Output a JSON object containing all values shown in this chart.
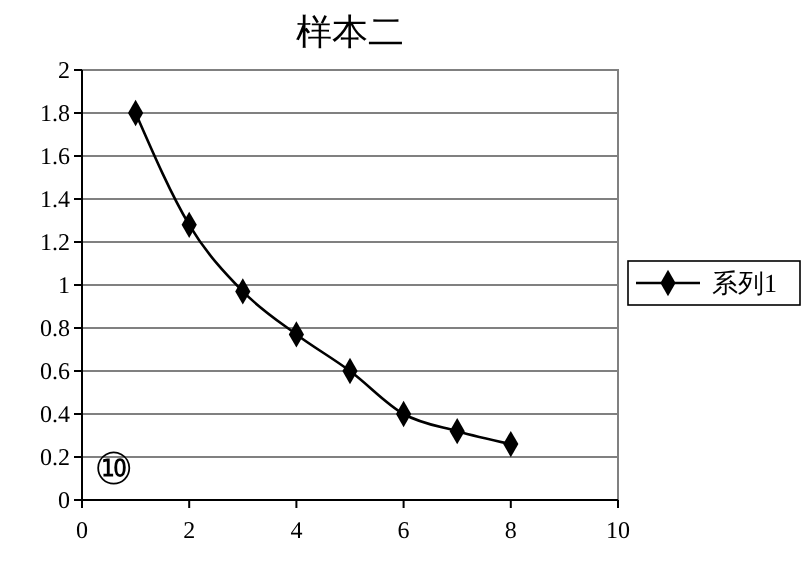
{
  "chart_data": {
    "type": "line",
    "title": "样本二",
    "x": [
      1,
      2,
      3,
      4,
      5,
      6,
      7,
      8
    ],
    "series": [
      {
        "name": "系列1",
        "color": "#000000",
        "values": [
          1.8,
          1.28,
          0.97,
          0.77,
          0.6,
          0.4,
          0.32,
          0.26
        ]
      }
    ],
    "xlim": [
      0,
      10
    ],
    "xticks": [
      0,
      2,
      4,
      6,
      8,
      10
    ],
    "ylim": [
      0,
      2
    ],
    "yticks": [
      0,
      0.2,
      0.4,
      0.6,
      0.8,
      1,
      1.2,
      1.4,
      1.6,
      1.8,
      2
    ],
    "grid": "y",
    "legend": "right",
    "marker": "diamond",
    "line_style": "solid",
    "annotations": [
      "⑩"
    ]
  }
}
